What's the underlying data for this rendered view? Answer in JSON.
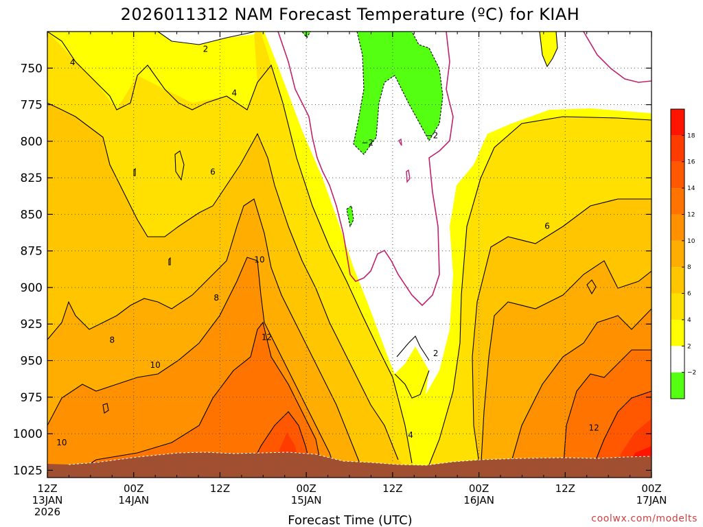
{
  "chart_data": {
    "type": "heatmap",
    "title": "2026011312 NAM Forecast Temperature (ºC) for KIAH",
    "xlabel": "Forecast Time (UTC)",
    "ylabel": "",
    "credit": "coolwx.com/modelts",
    "y_axis": {
      "quantity": "pressure (mb)",
      "inverted": true,
      "ylim": [
        1030,
        725
      ],
      "ticks": [
        "750",
        "775",
        "800",
        "825",
        "850",
        "875",
        "900",
        "925",
        "950",
        "975",
        "1000",
        "1025"
      ]
    },
    "x_axis": {
      "xlim_hours": [
        0,
        84
      ],
      "ticks": [
        {
          "hour": 0,
          "line1": "12Z",
          "line2": "13JAN",
          "line3": "2026"
        },
        {
          "hour": 12,
          "line1": "00Z",
          "line2": "14JAN",
          "line3": ""
        },
        {
          "hour": 24,
          "line1": "12Z",
          "line2": "",
          "line3": ""
        },
        {
          "hour": 36,
          "line1": "00Z",
          "line2": "15JAN",
          "line3": ""
        },
        {
          "hour": 48,
          "line1": "12Z",
          "line2": "",
          "line3": ""
        },
        {
          "hour": 60,
          "line1": "00Z",
          "line2": "16JAN",
          "line3": ""
        },
        {
          "hour": 72,
          "line1": "12Z",
          "line2": "",
          "line3": ""
        },
        {
          "hour": 84,
          "line1": "00Z",
          "line2": "17JAN",
          "line3": ""
        }
      ]
    },
    "grid": "dotted",
    "colorbar": {
      "placement": "right",
      "levels": [
        {
          "min": -4,
          "max": -2,
          "color": "#55ff11",
          "label": ""
        },
        {
          "min": -2,
          "max": 2,
          "color": "#ffffff",
          "label": "−2"
        },
        {
          "min": 2,
          "max": 4,
          "color": "#ffff00",
          "label": "2"
        },
        {
          "min": 4,
          "max": 6,
          "color": "#ffe000",
          "label": "4"
        },
        {
          "min": 6,
          "max": 8,
          "color": "#ffc600",
          "label": "6"
        },
        {
          "min": 8,
          "max": 10,
          "color": "#ffad00",
          "label": "8"
        },
        {
          "min": 10,
          "max": 12,
          "color": "#ff9000",
          "label": "10"
        },
        {
          "min": 12,
          "max": 14,
          "color": "#ff7400",
          "label": "12"
        },
        {
          "min": 14,
          "max": 16,
          "color": "#ff5800",
          "label": "14"
        },
        {
          "min": 16,
          "max": 18,
          "color": "#ff3c00",
          "label": "16"
        },
        {
          "min": 18,
          "max": 20,
          "color": "#ff1400",
          "label": "18"
        }
      ]
    },
    "contour_labels": [
      {
        "value": "2",
        "hour": 22.0,
        "pressure": 737
      },
      {
        "value": "4",
        "hour": 3.5,
        "pressure": 746
      },
      {
        "value": "4",
        "hour": 26.0,
        "pressure": 767
      },
      {
        "value": "6",
        "hour": 23.0,
        "pressure": 821
      },
      {
        "value": "10",
        "hour": 29.5,
        "pressure": 881
      },
      {
        "value": "8",
        "hour": 23.5,
        "pressure": 907
      },
      {
        "value": "8",
        "hour": 9.0,
        "pressure": 936
      },
      {
        "value": "12",
        "hour": 30.5,
        "pressure": 934
      },
      {
        "value": "10",
        "hour": 15.0,
        "pressure": 953
      },
      {
        "value": "10",
        "hour": 2.0,
        "pressure": 1006
      },
      {
        "value": "−2",
        "hour": 44.5,
        "pressure": 801
      },
      {
        "value": "−2",
        "hour": 53.5,
        "pressure": 796
      },
      {
        "value": "2",
        "hour": 54.0,
        "pressure": 945
      },
      {
        "value": "4",
        "hour": 50.5,
        "pressure": 1001
      },
      {
        "value": "6",
        "hour": 69.5,
        "pressure": 858
      },
      {
        "value": "12",
        "hour": 76.0,
        "pressure": 996
      }
    ]
  }
}
